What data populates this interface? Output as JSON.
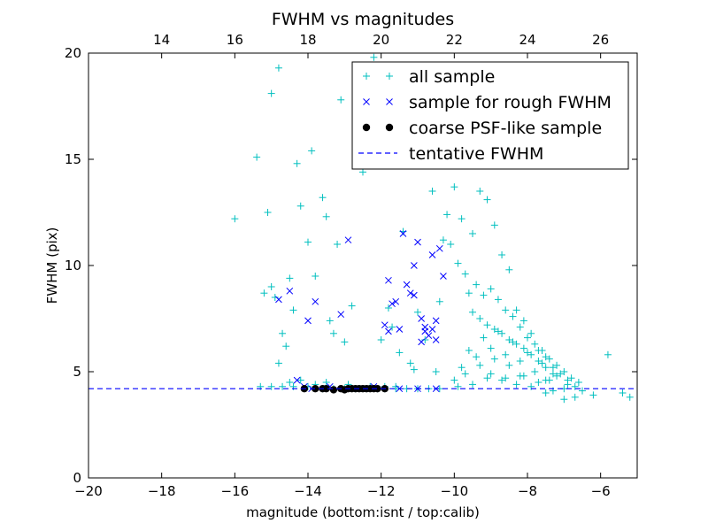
{
  "chart_data": {
    "type": "scatter",
    "title": "FWHM vs magnitudes",
    "xlabel": "magnitude (bottom:isnt / top:calib)",
    "ylabel": "FWHM (pix)",
    "xlim": [
      -20,
      -5
    ],
    "ylim": [
      0,
      20
    ],
    "x_ticks": [
      -20,
      -18,
      -16,
      -14,
      -12,
      -10,
      -8,
      -6
    ],
    "y_ticks": [
      0,
      5,
      10,
      15,
      20
    ],
    "top_x_ticks": [
      14,
      16,
      18,
      20,
      22,
      24,
      26
    ],
    "top_x_offset": 32,
    "grid": false,
    "legend_position": "top-right",
    "tentative_fwhm": 4.2,
    "colors": {
      "all": "#00bfbf",
      "rough": "#0000ff",
      "coarse": "#000000",
      "tentative": "#0000ff"
    },
    "series": [
      {
        "name": "all sample",
        "marker": "plus",
        "x": [
          -16.0,
          -15.4,
          -15.2,
          -15.1,
          -15.0,
          -14.9,
          -14.8,
          -14.7,
          -14.6,
          -14.5,
          -14.4,
          -14.3,
          -14.2,
          -14.0,
          -13.9,
          -13.8,
          -13.6,
          -13.5,
          -13.4,
          -13.3,
          -13.2,
          -13.1,
          -13.0,
          -12.8,
          -12.5,
          -12.2,
          -12.0,
          -11.8,
          -11.7,
          -11.5,
          -11.4,
          -11.2,
          -11.1,
          -11.0,
          -10.8,
          -10.6,
          -10.4,
          -10.3,
          -10.2,
          -10.0,
          -9.8,
          -9.6,
          -9.5,
          -9.3,
          -9.1,
          -8.9,
          -8.7,
          -8.5,
          -8.3,
          -8.1,
          -7.9,
          -7.7,
          -7.5,
          -7.3,
          -7.1,
          -6.9,
          -6.7,
          -6.5,
          -6.2,
          -5.8,
          -5.4,
          -5.2,
          -10.1,
          -9.9,
          -9.7,
          -9.4,
          -9.2,
          -9.0,
          -8.8,
          -8.6,
          -8.4,
          -8.2,
          -8.0,
          -7.8,
          -7.6,
          -7.4,
          -7.2,
          -7.0,
          -6.8,
          -6.6,
          -9.5,
          -9.3,
          -9.1,
          -8.9,
          -8.7,
          -8.5,
          -8.3,
          -8.1,
          -7.9,
          -7.7,
          -7.5,
          -7.3,
          -9.6,
          -9.2,
          -8.8,
          -8.4,
          -8.0,
          -7.6,
          -7.2,
          -6.9,
          -9.8,
          -9.4,
          -9.0,
          -8.6,
          -8.2,
          -7.8,
          -7.4,
          -7.0,
          -10.0,
          -9.7,
          -9.3,
          -8.9,
          -8.5,
          -8.1,
          -7.7,
          -7.3,
          -9.9,
          -9.5,
          -9.1,
          -8.7,
          -8.3,
          -7.9,
          -7.5,
          -10.4,
          -10.7,
          -11.0,
          -11.3,
          -11.6,
          -11.9,
          -12.1,
          -12.4,
          -12.7,
          -13.0,
          -13.3,
          -13.6,
          -14.0,
          -14.4,
          -14.7,
          -15.0,
          -15.3,
          -15.0,
          -14.8,
          -14.5,
          -14.2,
          -13.8,
          -13.5,
          -12.9,
          -12.3,
          -11.9,
          -11.6,
          -10.5,
          -9.0,
          -8.6,
          -8.2,
          -7.5,
          -7.0,
          -6.7
        ],
        "y": [
          12.2,
          15.1,
          8.7,
          12.5,
          18.1,
          8.5,
          19.3,
          6.8,
          6.2,
          9.4,
          7.9,
          14.8,
          12.8,
          11.1,
          15.4,
          9.5,
          13.2,
          12.3,
          7.4,
          6.8,
          11.0,
          17.8,
          6.4,
          8.1,
          14.4,
          19.8,
          6.5,
          8.0,
          7.1,
          5.9,
          11.6,
          5.4,
          5.1,
          7.8,
          6.5,
          13.5,
          8.3,
          11.2,
          12.4,
          13.7,
          12.2,
          8.7,
          11.5,
          13.5,
          13.1,
          11.9,
          10.5,
          9.8,
          7.9,
          7.4,
          6.8,
          6.0,
          5.7,
          5.2,
          4.9,
          4.6,
          4.3,
          4.1,
          3.9,
          5.8,
          4.0,
          3.8,
          11.0,
          10.1,
          9.6,
          9.1,
          8.6,
          8.9,
          8.4,
          7.9,
          7.6,
          7.1,
          6.6,
          6.3,
          6.0,
          5.6,
          5.3,
          5.0,
          4.7,
          4.5,
          7.8,
          7.5,
          7.2,
          7.0,
          6.8,
          6.5,
          6.3,
          6.1,
          5.8,
          5.5,
          5.2,
          4.9,
          6.0,
          6.6,
          6.9,
          6.4,
          5.9,
          5.4,
          4.8,
          4.4,
          5.2,
          5.7,
          6.1,
          5.8,
          5.5,
          5.0,
          4.6,
          4.2,
          4.6,
          4.9,
          5.3,
          5.6,
          5.3,
          4.8,
          4.5,
          4.1,
          4.3,
          4.4,
          4.7,
          4.6,
          4.4,
          4.3,
          4.0,
          4.2,
          4.2,
          4.2,
          4.2,
          4.2,
          4.2,
          4.2,
          4.2,
          4.2,
          4.2,
          4.2,
          4.2,
          4.3,
          4.3,
          4.3,
          4.3,
          4.3,
          9.0,
          5.4,
          4.5,
          4.6,
          4.4,
          4.5,
          4.4,
          4.3,
          4.3,
          4.3,
          5.0,
          4.9,
          4.7,
          4.8,
          4.6,
          3.7,
          3.8
        ]
      },
      {
        "name": "sample for rough FWHM",
        "marker": "x",
        "x": [
          -14.8,
          -14.5,
          -14.3,
          -14.0,
          -13.8,
          -13.1,
          -12.9,
          -11.8,
          -11.7,
          -11.5,
          -11.4,
          -11.2,
          -11.1,
          -11.0,
          -10.9,
          -10.8,
          -10.7,
          -10.6,
          -10.5,
          -10.4,
          -11.8,
          -11.6,
          -11.3,
          -10.9,
          -10.6,
          -10.3,
          -11.9,
          -11.1,
          -10.8,
          -10.5,
          -14.1,
          -13.9,
          -13.4,
          -12.6,
          -12.2,
          -11.5,
          -11.0,
          -10.5
        ],
        "y": [
          8.4,
          8.8,
          4.6,
          7.4,
          8.3,
          7.7,
          11.2,
          9.3,
          8.2,
          7.0,
          11.5,
          8.7,
          10.0,
          11.1,
          7.5,
          7.1,
          6.7,
          10.5,
          7.4,
          10.8,
          6.9,
          8.3,
          9.1,
          6.4,
          7.0,
          9.5,
          7.2,
          8.6,
          6.9,
          6.5,
          4.3,
          4.2,
          4.3,
          4.2,
          4.3,
          4.2,
          4.2,
          4.2
        ]
      },
      {
        "name": "coarse PSF-like sample",
        "marker": "dot",
        "x": [
          -14.1,
          -13.8,
          -13.6,
          -13.3,
          -13.1,
          -12.9,
          -12.7,
          -12.5,
          -12.3,
          -12.1,
          -11.9,
          -13.5,
          -13.0,
          -12.8,
          -12.6,
          -12.4,
          -12.2
        ],
        "y": [
          4.2,
          4.2,
          4.2,
          4.15,
          4.2,
          4.2,
          4.2,
          4.2,
          4.2,
          4.2,
          4.2,
          4.2,
          4.15,
          4.2,
          4.2,
          4.2,
          4.2
        ]
      },
      {
        "name": "tentative FWHM",
        "marker": "dashed-line",
        "y": 4.2
      }
    ]
  }
}
